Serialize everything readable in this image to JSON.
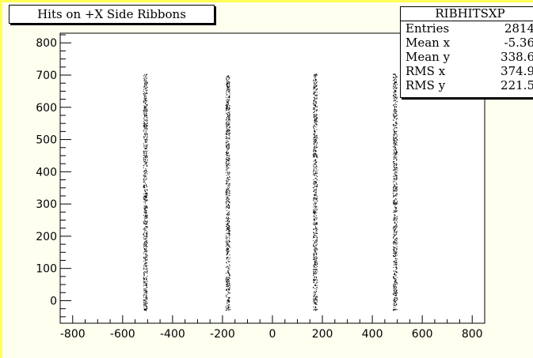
{
  "title": "Hits on +X Side Ribbons",
  "stats": {
    "name": "RIBHITSXP",
    "rows": [
      {
        "label": "Entries",
        "value": "2814"
      },
      {
        "label": "Mean x",
        "value": "-5.36"
      },
      {
        "label": "Mean y",
        "value": "338.6"
      },
      {
        "label": "RMS x",
        "value": "374.9"
      },
      {
        "label": "RMS y",
        "value": "221.5"
      }
    ]
  },
  "chart_data": {
    "type": "scatter",
    "title": "Hits on +X Side Ribbons",
    "xlabel": "",
    "ylabel": "",
    "xlim": [
      -850,
      850
    ],
    "ylim": [
      -70,
      830
    ],
    "x_ticks": [
      -800,
      -600,
      -400,
      -200,
      0,
      200,
      400,
      600,
      800
    ],
    "y_ticks": [
      0,
      100,
      200,
      300,
      400,
      500,
      600,
      700,
      800
    ],
    "grid": false,
    "legend": "none",
    "series": [
      {
        "marker_color": "#000000",
        "bands": [
          {
            "x_center": -510,
            "x_width": 16,
            "y_min": -30,
            "y_max": 705
          },
          {
            "x_center": -180,
            "x_width": 16,
            "y_min": -30,
            "y_max": 700
          },
          {
            "x_center": 170,
            "x_width": 16,
            "y_min": -30,
            "y_max": 705
          },
          {
            "x_center": 490,
            "x_width": 16,
            "y_min": -30,
            "y_max": 705
          }
        ]
      }
    ]
  }
}
